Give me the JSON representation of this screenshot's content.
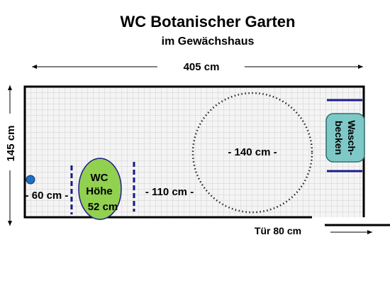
{
  "title": "WC Botanischer Garten",
  "subtitle": "im Gewächshaus",
  "dimensions": {
    "width_label": "405 cm",
    "height_label": "145 cm",
    "circle_label": "- 140 cm -",
    "wc_left_label": "- 60 cm -",
    "wc_right_label": "- 110 cm -",
    "door_label": "Tür 80 cm"
  },
  "wc": {
    "line1": "WC",
    "line2": "Höhe",
    "line3": "52 cm"
  },
  "sink": {
    "line1": "Wasch-",
    "line2": "becken"
  },
  "colors": {
    "wall": "#000000",
    "floor_tile": "#d3d3d3",
    "grab_bar": "#1a1a8c",
    "wc_fill": "#92d050",
    "sink_fill": "#7fc8c8",
    "button": "#1f6fbf",
    "turning_circle": "#222222"
  }
}
